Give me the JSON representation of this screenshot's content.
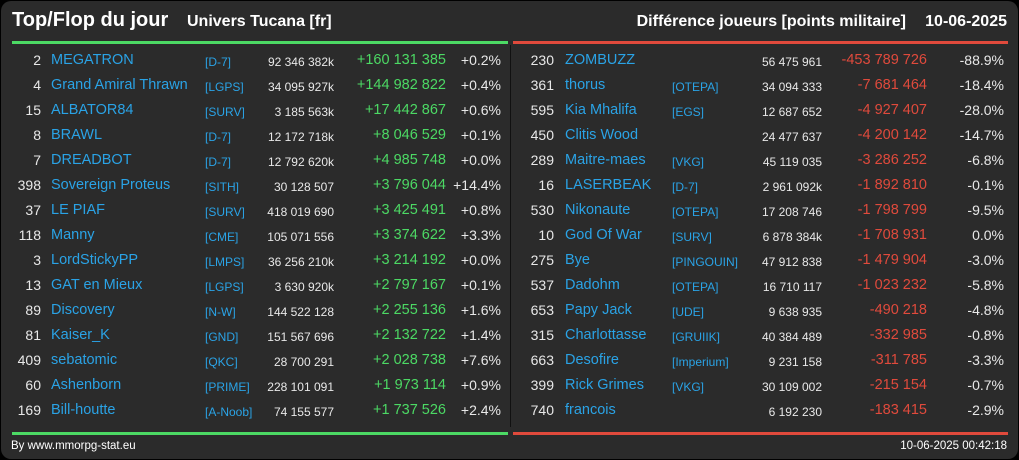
{
  "header": {
    "title": "Top/Flop du jour",
    "univers": "Univers Tucana [fr]",
    "difference_label": "Différence joueurs [points militaire]",
    "date": "10-06-2025"
  },
  "colors": {
    "positive": "#4cd964",
    "negative": "#e04a3c",
    "name_link": "#2aa3e6",
    "background": "#2b2b2b"
  },
  "top": [
    {
      "rank": "2",
      "name": "MEGATRON",
      "tag": "[D-7]",
      "points": "92 346 382k",
      "diff": "+160 131 385",
      "pct": "+0.2%"
    },
    {
      "rank": "4",
      "name": "Grand Amiral Thrawn",
      "tag": "[LGPS]",
      "points": "34 095 927k",
      "diff": "+144 982 822",
      "pct": "+0.4%"
    },
    {
      "rank": "15",
      "name": "ALBATOR84",
      "tag": "[SURV]",
      "points": "3 185 563k",
      "diff": "+17 442 867",
      "pct": "+0.6%"
    },
    {
      "rank": "8",
      "name": "BRAWL",
      "tag": "[D-7]",
      "points": "12 172 718k",
      "diff": "+8 046 529",
      "pct": "+0.1%"
    },
    {
      "rank": "7",
      "name": "DREADBOT",
      "tag": "[D-7]",
      "points": "12 792 620k",
      "diff": "+4 985 748",
      "pct": "+0.0%"
    },
    {
      "rank": "398",
      "name": "Sovereign Proteus",
      "tag": "[SITH]",
      "points": "30 128 507",
      "diff": "+3 796 044",
      "pct": "+14.4%"
    },
    {
      "rank": "37",
      "name": "LE PIAF",
      "tag": "[SURV]",
      "points": "418 019 690",
      "diff": "+3 425 491",
      "pct": "+0.8%"
    },
    {
      "rank": "118",
      "name": "Manny",
      "tag": "[CME]",
      "points": "105 071 556",
      "diff": "+3 374 622",
      "pct": "+3.3%"
    },
    {
      "rank": "3",
      "name": "LordStickyPP",
      "tag": "[LMPS]",
      "points": "36 256 210k",
      "diff": "+3 214 192",
      "pct": "+0.0%"
    },
    {
      "rank": "13",
      "name": "GAT en Mieux",
      "tag": "[LGPS]",
      "points": "3 630 920k",
      "diff": "+2 797 167",
      "pct": "+0.1%"
    },
    {
      "rank": "89",
      "name": "Discovery",
      "tag": "[N-W]",
      "points": "144 522 128",
      "diff": "+2 255 136",
      "pct": "+1.6%"
    },
    {
      "rank": "81",
      "name": "Kaiser_K",
      "tag": "[GND]",
      "points": "151 567 696",
      "diff": "+2 132 722",
      "pct": "+1.4%"
    },
    {
      "rank": "409",
      "name": "sebatomic",
      "tag": "[QKC]",
      "points": "28 700 291",
      "diff": "+2 028 738",
      "pct": "+7.6%"
    },
    {
      "rank": "60",
      "name": "Ashenborn",
      "tag": "[PRIME]",
      "points": "228 101 091",
      "diff": "+1 973 114",
      "pct": "+0.9%"
    },
    {
      "rank": "169",
      "name": "Bill-houtte",
      "tag": "[A-Noob]",
      "points": "74 155 577",
      "diff": "+1 737 526",
      "pct": "+2.4%"
    }
  ],
  "flop": [
    {
      "rank": "230",
      "name": "ZOMBUZZ",
      "tag": "",
      "points": "56 475 961",
      "diff": "-453 789 726",
      "pct": "-88.9%"
    },
    {
      "rank": "361",
      "name": "thorus",
      "tag": "[OTEPA]",
      "points": "34 094 333",
      "diff": "-7 681 464",
      "pct": "-18.4%"
    },
    {
      "rank": "595",
      "name": "Kia Mhalifa",
      "tag": "[EGS]",
      "points": "12 687 652",
      "diff": "-4 927 407",
      "pct": "-28.0%"
    },
    {
      "rank": "450",
      "name": "Clitis Wood",
      "tag": "",
      "points": "24 477 637",
      "diff": "-4 200 142",
      "pct": "-14.7%"
    },
    {
      "rank": "289",
      "name": "Maitre-maes",
      "tag": "[VKG]",
      "points": "45 119 035",
      "diff": "-3 286 252",
      "pct": "-6.8%"
    },
    {
      "rank": "16",
      "name": "LASERBEAK",
      "tag": "[D-7]",
      "points": "2 961 092k",
      "diff": "-1 892 810",
      "pct": "-0.1%"
    },
    {
      "rank": "530",
      "name": "Nikonaute",
      "tag": "[OTEPA]",
      "points": "17 208 746",
      "diff": "-1 798 799",
      "pct": "-9.5%"
    },
    {
      "rank": "10",
      "name": "God Of War",
      "tag": "[SURV]",
      "points": "6 878 384k",
      "diff": "-1 708 931",
      "pct": "0.0%"
    },
    {
      "rank": "275",
      "name": "Bye",
      "tag": "[PINGOUIN]",
      "points": "47 912 838",
      "diff": "-1 479 904",
      "pct": "-3.0%"
    },
    {
      "rank": "537",
      "name": "Dadohm",
      "tag": "[OTEPA]",
      "points": "16 710 117",
      "diff": "-1 023 232",
      "pct": "-5.8%"
    },
    {
      "rank": "653",
      "name": "Papy Jack",
      "tag": "[UDE]",
      "points": "9 638 935",
      "diff": "-490 218",
      "pct": "-4.8%"
    },
    {
      "rank": "315",
      "name": "Charlottasse",
      "tag": "[GRUIIK]",
      "points": "40 384 489",
      "diff": "-332 985",
      "pct": "-0.8%"
    },
    {
      "rank": "663",
      "name": "Desofire",
      "tag": "[Imperium]",
      "points": "9 231 158",
      "diff": "-311 785",
      "pct": "-3.3%"
    },
    {
      "rank": "399",
      "name": "Rick Grimes",
      "tag": "[VKG]",
      "points": "30 109 002",
      "diff": "-215 154",
      "pct": "-0.7%"
    },
    {
      "rank": "740",
      "name": "francois",
      "tag": "",
      "points": "6 192 230",
      "diff": "-183 415",
      "pct": "-2.9%"
    }
  ],
  "footer": {
    "credit": "By www.mmorpg-stat.eu",
    "timestamp": "10-06-2025 00:42:18"
  }
}
